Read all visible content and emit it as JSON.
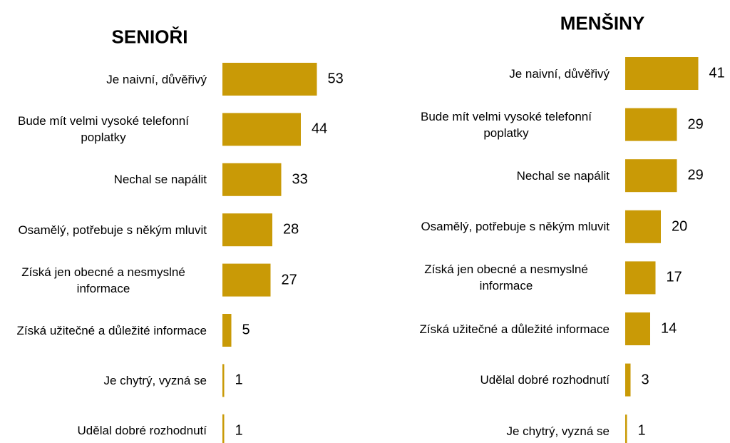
{
  "chart_data": [
    {
      "type": "barh",
      "title": "SENIOŘI",
      "color": "#c99a06",
      "categories": [
        "Je naivní, důvěřivý",
        "Bude mít velmi vysoké telefonní poplatky",
        "Nechal se napálit",
        "Osamělý, potřebuje s někým mluvit",
        "Získá jen obecné a nesmyslné informace",
        "Získá užitečné a důležité informace",
        "Je chytrý, vyzná se",
        "Udělal dobré rozhodnutí"
      ],
      "values": [
        53,
        44,
        33,
        28,
        27,
        5,
        1,
        1
      ]
    },
    {
      "type": "barh",
      "title": "MENŠINY",
      "color": "#c99a06",
      "categories": [
        "Je naivní, důvěřivý",
        "Bude mít velmi vysoké telefonní poplatky",
        "Nechal se napálit",
        "Osamělý, potřebuje s někým mluvit",
        "Získá jen obecné a nesmyslné informace",
        "Získá užitečné a důležité informace",
        "Udělal dobré rozhodnutí",
        "Je chytrý, vyzná se"
      ],
      "values": [
        41,
        29,
        29,
        20,
        17,
        14,
        3,
        1
      ]
    }
  ]
}
